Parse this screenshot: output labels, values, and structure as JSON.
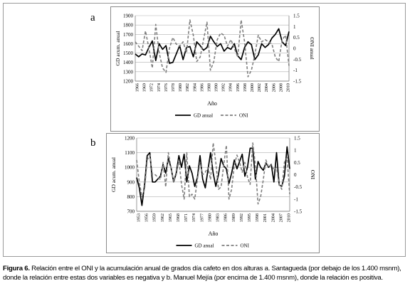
{
  "panels": [
    {
      "letter": "a"
    },
    {
      "letter": "b"
    }
  ],
  "caption": {
    "label": "Figura 6.",
    "text": " Relación entre el ONI y la acumulación anual de grados día cafeto en dos alturas a. Santagueda (por debajo de los 1.400 msnm), donde la relación entre estas dos variables es negativa y b. Manuel Mejía (por encima de 1.400 msnm), donde la relación es positiva."
  },
  "chart_data": [
    {
      "type": "line",
      "panel": "a",
      "xlabel": "Año",
      "ylabel": "GD acum. anual",
      "y2label": "ONI anual",
      "x_tick_labels": [
        "1966",
        "1969",
        "1972",
        "1974",
        "1976",
        "1978",
        "1980",
        "1982",
        "1984",
        "1986",
        "1988",
        "1990",
        "1992",
        "1994",
        "1996",
        "1998",
        "2000",
        "2002",
        "2004",
        "2006",
        "2008",
        "2010"
      ],
      "x_range": [
        1966,
        2011
      ],
      "ylim": [
        1200,
        1900
      ],
      "yticks": [
        "1200",
        "1300",
        "1400",
        "1500",
        "1600",
        "1700",
        "1800",
        "1900"
      ],
      "y2lim": [
        -1.5,
        1.5
      ],
      "y2ticks": [
        "-1.5",
        "-1",
        "-0.5",
        "0",
        "0.5",
        "1",
        "1.5"
      ],
      "grid": true,
      "legend": "bottom",
      "series": [
        {
          "name": "GD anual",
          "axis": "left",
          "style": "solid",
          "color": "#000000",
          "x": [
            1966,
            1967,
            1968,
            1969,
            1970,
            1971,
            1972,
            1973,
            1974,
            1975,
            1976,
            1977,
            1978,
            1979,
            1980,
            1981,
            1982,
            1983,
            1984,
            1985,
            1986,
            1987,
            1988,
            1989,
            1990,
            1991,
            1992,
            1993,
            1994,
            1995,
            1996,
            1997,
            1998,
            1999,
            2000,
            2001,
            2002,
            2003,
            2004,
            2005,
            2006,
            2007,
            2008,
            2009,
            2010,
            2011
          ],
          "values": [
            1490,
            1460,
            1490,
            1480,
            1560,
            1630,
            1420,
            1600,
            1540,
            1580,
            1390,
            1400,
            1490,
            1580,
            1430,
            1560,
            1570,
            1460,
            1620,
            1580,
            1530,
            1560,
            1680,
            1620,
            1570,
            1600,
            1520,
            1560,
            1540,
            1600,
            1470,
            1430,
            1560,
            1620,
            1590,
            1430,
            1480,
            1600,
            1560,
            1590,
            1660,
            1700,
            1760,
            1620,
            1580,
            1730
          ]
        },
        {
          "name": "ONI",
          "axis": "right",
          "style": "dashed",
          "color": "#7f7f7f",
          "x": [
            1966,
            1967,
            1968,
            1969,
            1970,
            1971,
            1972,
            1973,
            1974,
            1975,
            1976,
            1977,
            1978,
            1979,
            1980,
            1981,
            1982,
            1983,
            1984,
            1985,
            1986,
            1987,
            1988,
            1989,
            1990,
            1991,
            1992,
            1993,
            1994,
            1995,
            1996,
            1997,
            1998,
            1999,
            2000,
            2001,
            2002,
            2003,
            2004,
            2005,
            2006,
            2007,
            2008,
            2009,
            2010,
            2011
          ],
          "values": [
            0.3,
            0.1,
            -0.1,
            0.8,
            0.0,
            -0.9,
            1.1,
            -0.2,
            -0.9,
            -1.1,
            0.0,
            0.5,
            0.2,
            0.1,
            0.3,
            -0.2,
            1.3,
            0.6,
            -0.6,
            -0.4,
            0.4,
            1.2,
            -1.0,
            -0.6,
            0.4,
            0.7,
            0.6,
            0.1,
            0.4,
            0.0,
            -0.4,
            1.3,
            0.3,
            -1.3,
            -1.0,
            -0.3,
            0.6,
            0.3,
            0.4,
            0.3,
            0.2,
            -0.4,
            -0.6,
            0.4,
            0.6,
            -0.8
          ]
        }
      ]
    },
    {
      "type": "line",
      "panel": "b",
      "xlabel": "Año",
      "ylabel": "GD acum. anual",
      "y2label": "ONI",
      "x_tick_labels": [
        "1953",
        "1956",
        "1959",
        "1962",
        "1965",
        "1968",
        "1971",
        "1974",
        "1977",
        "1980",
        "1983",
        "1986",
        "1989",
        "1992",
        "1995",
        "1998",
        "2001",
        "2004",
        "2007",
        "2010"
      ],
      "x_range": [
        1953,
        2011
      ],
      "ylim": [
        700,
        1200
      ],
      "yticks": [
        "700",
        "800",
        "900",
        "1000",
        "1100",
        "1200"
      ],
      "y2lim": [
        -1.5,
        1.5
      ],
      "y2ticks": [
        "-1.5",
        "-1",
        "-0.5",
        "0",
        "0.5",
        "1",
        "1.5"
      ],
      "grid": true,
      "legend": "bottom",
      "series": [
        {
          "name": "GD anual",
          "axis": "left",
          "style": "solid",
          "color": "#000000",
          "x": [
            1953,
            1954,
            1955,
            1956,
            1957,
            1958,
            1959,
            1960,
            1961,
            1962,
            1963,
            1964,
            1965,
            1966,
            1967,
            1968,
            1969,
            1970,
            1971,
            1972,
            1973,
            1974,
            1975,
            1976,
            1977,
            1978,
            1979,
            1980,
            1981,
            1982,
            1983,
            1984,
            1985,
            1986,
            1987,
            1988,
            1989,
            1990,
            1991,
            1992,
            1993,
            1994,
            1995,
            1996,
            1997,
            1998,
            1999,
            2000,
            2001,
            2002,
            2003,
            2004,
            2005,
            2006,
            2007,
            2008,
            2009,
            2010,
            2011
          ],
          "values": [
            930,
            860,
            740,
            880,
            1080,
            1100,
            900,
            900,
            920,
            940,
            1020,
            960,
            1060,
            1000,
            900,
            960,
            1080,
            1000,
            1090,
            900,
            1010,
            960,
            870,
            930,
            1080,
            920,
            860,
            980,
            1100,
            960,
            870,
            950,
            1060,
            1010,
            990,
            890,
            960,
            1050,
            990,
            1040,
            1090,
            940,
            1000,
            1130,
            1130,
            920,
            1040,
            1000,
            980,
            1030,
            1000,
            1020,
            900,
            1100,
            880,
            870,
            940,
            1140,
            990
          ]
        },
        {
          "name": "ONI",
          "axis": "right",
          "style": "dashed",
          "color": "#7f7f7f",
          "x": [
            1953,
            1954,
            1955,
            1956,
            1957,
            1958,
            1959,
            1960,
            1961,
            1962,
            1963,
            1964,
            1965,
            1966,
            1967,
            1968,
            1969,
            1970,
            1971,
            1972,
            1973,
            1974,
            1975,
            1976,
            1977,
            1978,
            1979,
            1980,
            1981,
            1982,
            1983,
            1984,
            1985,
            1986,
            1987,
            1988,
            1989,
            1990,
            1991,
            1992,
            1993,
            1994,
            1995,
            1996,
            1997,
            1998,
            1999,
            2000,
            2001,
            2002,
            2003,
            2004,
            2005,
            2006,
            2007,
            2008,
            2009,
            2010,
            2011
          ],
          "values": [
            0.6,
            -0.3,
            -0.9,
            -0.6,
            0.6,
            0.8,
            0.0,
            0.0,
            -0.1,
            -0.2,
            0.5,
            -0.5,
            0.9,
            0.3,
            -0.3,
            0.0,
            0.6,
            -0.4,
            -1.0,
            0.9,
            -0.9,
            -0.8,
            -1.0,
            -0.2,
            0.5,
            0.0,
            0.1,
            0.3,
            -0.2,
            1.3,
            0.5,
            -0.6,
            -0.5,
            0.4,
            1.2,
            -1.0,
            -0.6,
            0.4,
            0.8,
            0.5,
            0.1,
            0.5,
            -0.1,
            -0.4,
            1.3,
            0.4,
            -1.2,
            -0.9,
            -0.2,
            0.6,
            0.3,
            0.4,
            0.2,
            0.3,
            -0.4,
            -0.6,
            0.5,
            0.7,
            -0.8
          ]
        }
      ]
    }
  ]
}
